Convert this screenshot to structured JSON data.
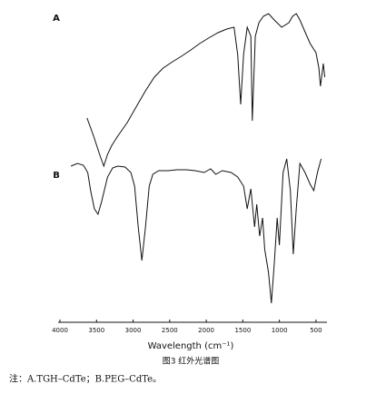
{
  "chart_data": {
    "type": "line",
    "xlabel": "Wavelength (cm⁻¹)",
    "caption": "图3  红外光谱图",
    "note": "注：A.TGH–CdTe；B.PEG–CdTe。",
    "xlim": [
      4000,
      350
    ],
    "ylim": [
      0,
      340
    ],
    "xticks": [
      4000,
      3500,
      3000,
      2500,
      2000,
      1500,
      1000,
      500
    ],
    "series": [
      {
        "name": "A",
        "color": "#111111",
        "x": [
          3630,
          3540,
          3450,
          3400,
          3350,
          3290,
          3210,
          3080,
          2960,
          2830,
          2710,
          2590,
          2460,
          2340,
          2210,
          2090,
          1970,
          1840,
          1720,
          1620,
          1570,
          1530,
          1490,
          1440,
          1390,
          1370,
          1330,
          1280,
          1220,
          1150,
          1070,
          970,
          870,
          820,
          770,
          720,
          650,
          580,
          500,
          460,
          440,
          400,
          380
        ],
        "values": [
          215,
          195,
          173,
          162,
          175,
          185,
          195,
          210,
          227,
          245,
          260,
          270,
          277,
          283,
          290,
          297,
          303,
          309,
          313,
          315,
          285,
          230,
          285,
          315,
          305,
          212,
          305,
          320,
          327,
          330,
          323,
          315,
          320,
          327,
          330,
          323,
          310,
          297,
          287,
          270,
          250,
          275,
          260
        ]
      },
      {
        "name": "B",
        "color": "#111111",
        "x": [
          3850,
          3760,
          3680,
          3620,
          3580,
          3530,
          3480,
          3430,
          3350,
          3280,
          3210,
          3110,
          3030,
          2980,
          2930,
          2880,
          2830,
          2780,
          2730,
          2650,
          2520,
          2400,
          2270,
          2150,
          2030,
          1940,
          1870,
          1780,
          1660,
          1570,
          1490,
          1440,
          1390,
          1340,
          1310,
          1270,
          1230,
          1200,
          1150,
          1110,
          1070,
          1030,
          1000,
          950,
          900,
          850,
          810,
          770,
          720,
          650,
          580,
          530,
          480,
          430
        ],
        "values": [
          162,
          165,
          163,
          155,
          135,
          115,
          109,
          123,
          150,
          160,
          162,
          161,
          155,
          140,
          95,
          58,
          95,
          140,
          153,
          157,
          157,
          158,
          158,
          157,
          155,
          159,
          153,
          157,
          155,
          150,
          140,
          115,
          137,
          95,
          120,
          85,
          105,
          70,
          45,
          11,
          55,
          105,
          75,
          155,
          170,
          135,
          65,
          115,
          165,
          155,
          142,
          135,
          155,
          170
        ]
      }
    ]
  }
}
